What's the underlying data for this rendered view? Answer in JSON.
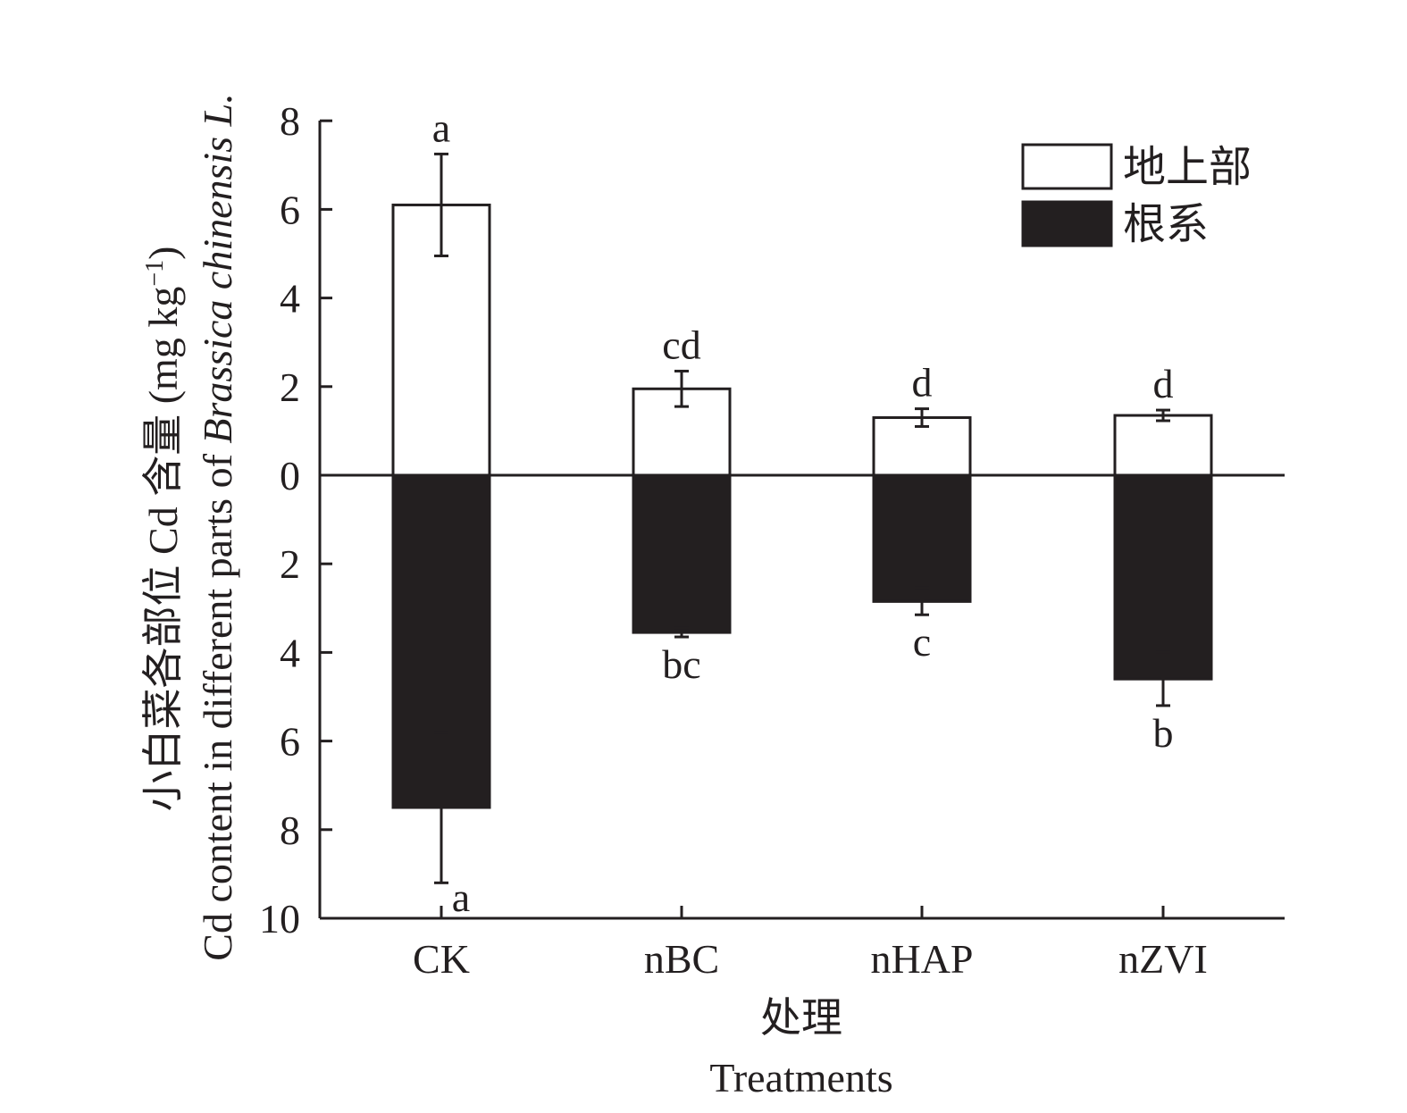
{
  "chart_data": {
    "type": "bar",
    "layout": "mirrored-vertical",
    "categories": [
      "CK",
      "nBC",
      "nHAP",
      "nZVI"
    ],
    "series": [
      {
        "name": "地上部",
        "direction": "up",
        "color": "#ffffff",
        "values": [
          6.1,
          1.95,
          1.3,
          1.35
        ],
        "errors": [
          1.15,
          0.4,
          0.2,
          0.12
        ],
        "letters": [
          "a",
          "cd",
          "d",
          "d"
        ]
      },
      {
        "name": "根系",
        "direction": "down",
        "color": "#231f20",
        "values": [
          7.5,
          3.55,
          2.85,
          4.6
        ],
        "errors": [
          1.7,
          0.1,
          0.3,
          0.6
        ],
        "letters": [
          "a",
          "bc",
          "c",
          "b"
        ]
      }
    ],
    "y_ticks_up": [
      "0",
      "2",
      "4",
      "6",
      "8"
    ],
    "y_ticks_down": [
      "2",
      "4",
      "6",
      "8",
      "10"
    ],
    "ylim_up": [
      0,
      8
    ],
    "ylim_down": [
      0,
      10
    ],
    "ylabel_cn": "小白菜各部位 Cd 含量 (mg kg",
    "ylabel_cn_sup": "−1",
    "ylabel_cn_end": ")",
    "ylabel_en_prefix": "Cd content in different parts of ",
    "ylabel_en_italic": "Brassica chinensis L.",
    "xlabel_cn": "处理",
    "xlabel_en": "Treatments",
    "legend": {
      "position": "top-right",
      "entries": [
        "地上部",
        "根系"
      ]
    },
    "grid": false
  }
}
